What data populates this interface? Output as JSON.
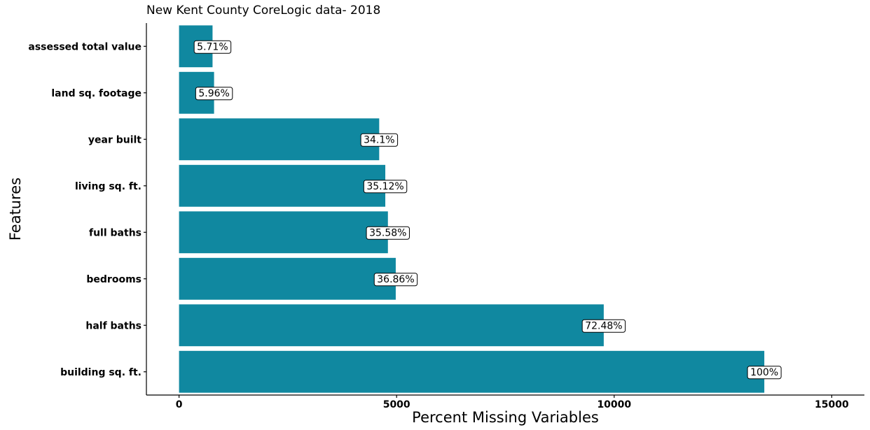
{
  "chart_data": {
    "type": "bar",
    "orientation": "horizontal",
    "title": "New Kent County CoreLogic data- 2018",
    "xlabel": "Percent Missing Variables",
    "ylabel": "Features",
    "categories": [
      "assessed total value",
      "land sq. footage",
      "year built",
      "living sq. ft.",
      "full baths",
      "bedrooms",
      "half baths",
      "building sq. ft."
    ],
    "values": [
      770,
      805,
      4600,
      4740,
      4800,
      4980,
      9760,
      13450
    ],
    "labels": [
      "5.71%",
      "5.96%",
      "34.1%",
      "35.12%",
      "35.58%",
      "36.86%",
      "72.48%",
      "100%"
    ],
    "xlim": [
      -750,
      15750
    ],
    "xticks": [
      0,
      5000,
      10000,
      15000
    ],
    "xtick_labels": [
      "0",
      "5000",
      "10000",
      "15000"
    ],
    "bar_color": "#1088a0",
    "grid": false
  }
}
